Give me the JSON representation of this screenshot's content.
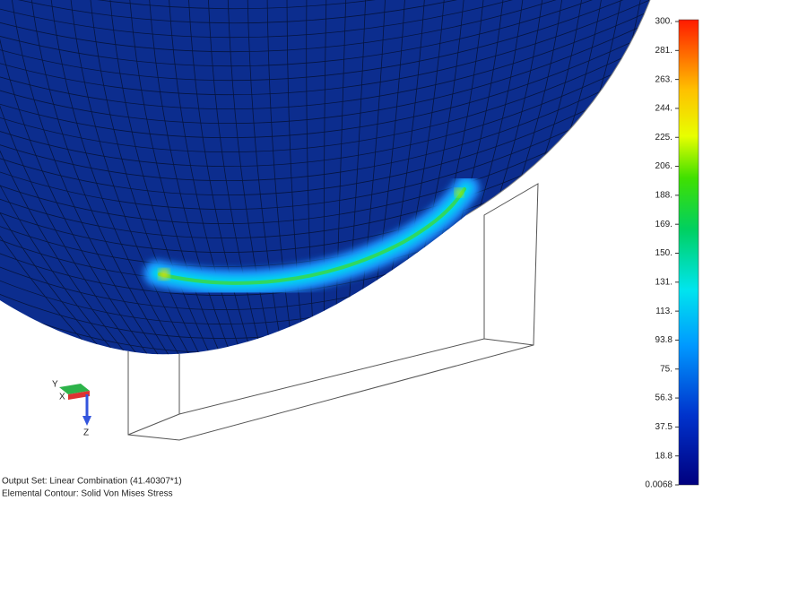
{
  "legend": {
    "labels": [
      "300.",
      "281.",
      "263.",
      "244.",
      "225.",
      "206.",
      "188.",
      "169.",
      "150.",
      "131.",
      "113.",
      "93.8",
      "75.",
      "56.3",
      "37.5",
      "18.8",
      "0.0068"
    ]
  },
  "triad": {
    "y": "Y",
    "x": "X",
    "z": "Z"
  },
  "info": {
    "output_set": "Output Set: Linear Combination (41.40307*1)",
    "contour": "Elemental Contour: Solid Von Mises Stress"
  }
}
